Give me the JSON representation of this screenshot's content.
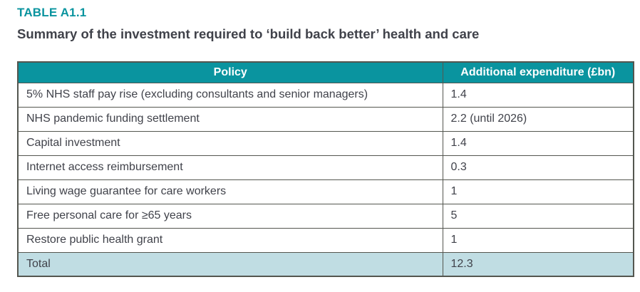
{
  "page": {
    "label": "TABLE A1.1",
    "title": "Summary of the investment required to ‘build back better’ health and care"
  },
  "colors": {
    "teal": "#0a949f",
    "total_row_bg": "#c0dde3",
    "border": "#54564f",
    "text": "#40424a"
  },
  "table": {
    "columns": [
      "Policy",
      "Additional expenditure (£bn)"
    ],
    "rows": [
      {
        "policy": "5% NHS staff pay rise (excluding consultants and senior managers)",
        "expenditure": "1.4"
      },
      {
        "policy": "NHS pandemic funding settlement",
        "expenditure": "2.2 (until 2026)"
      },
      {
        "policy": "Capital investment",
        "expenditure": "1.4"
      },
      {
        "policy": "Internet access reimbursement",
        "expenditure": "0.3"
      },
      {
        "policy": "Living wage guarantee for care workers",
        "expenditure": "1"
      },
      {
        "policy": "Free personal care for ≥65 years",
        "expenditure": "5"
      },
      {
        "policy": "Restore public health grant",
        "expenditure": "1"
      }
    ],
    "total": {
      "policy": "Total",
      "expenditure": "12.3"
    }
  }
}
